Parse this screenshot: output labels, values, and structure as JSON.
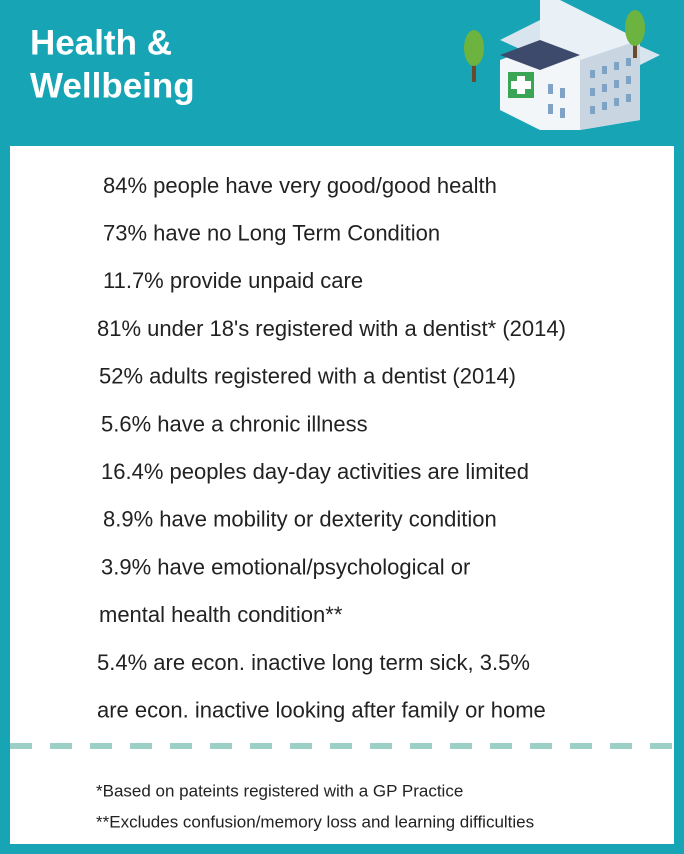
{
  "header": {
    "title_lines": [
      "Health &",
      "Wellbeing"
    ]
  },
  "stats": [
    "84% people have very good/good health",
    "73% have no Long Term Condition",
    "11.7% provide unpaid care",
    "81% under 18's registered with a dentist* (2014)",
    "52% adults registered with a dentist (2014)",
    "5.6% have a chronic illness",
    "16.4% peoples day-day activities are limited",
    "8.9% have mobility or dexterity condition",
    "3.9% have emotional/psychological or",
    "mental health condition**",
    "5.4% are econ. inactive long term sick, 3.5%",
    "are econ. inactive looking after family or home"
  ],
  "footnotes": [
    "*Based on pateints registered with a GP Practice",
    "**Excludes confusion/memory loss and learning difficulties"
  ]
}
